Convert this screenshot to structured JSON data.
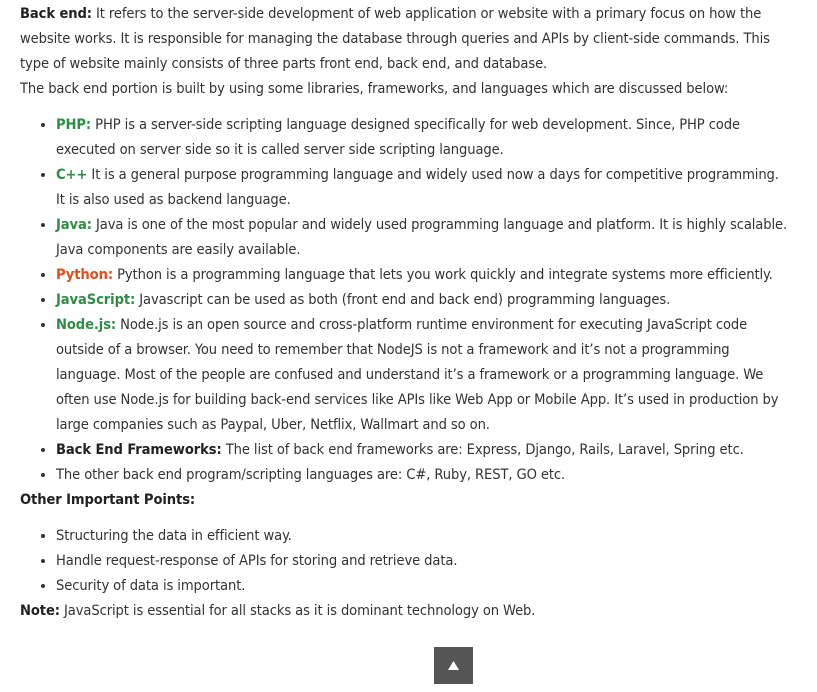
{
  "intro": {
    "label": "Back end:",
    "text": "It refers to the server-side development of web application or website with a primary focus on how the website works. It is responsible for managing the database through queries and APIs by client-side commands. This type of website mainly consists of three parts front end, back end, and database."
  },
  "lead": "The back end portion is built by using some libraries, frameworks, and languages which are discussed below:",
  "languages": [
    {
      "term": "PHP:",
      "color": "#2f8d46",
      "text": "PHP is a server-side scripting language designed specifically for web development. Since, PHP code executed on server side so it is called server side scripting language."
    },
    {
      "term": "C++",
      "color": "#2f8d46",
      "text": "It is a general purpose programming language and widely used now a days for competitive programming. It is also used as backend language."
    },
    {
      "term": "Java:",
      "color": "#2f8d46",
      "text": "Java is one of the most popular and widely used programming language and platform. It is highly scalable. Java components are easily available."
    },
    {
      "term": "Python:",
      "color": "#e0501c",
      "text": "Python is a programming language that lets you work quickly and integrate systems more efficiently."
    },
    {
      "term": "JavaScript:",
      "color": "#2f8d46",
      "text": "Javascript can be used as both (front end and back end) programming languages."
    },
    {
      "term": "Node.js:",
      "color": "#2f8d46",
      "text": "Node.js is an open source and cross-platform runtime environment for executing JavaScript code outside of a browser. You need to remember that NodeJS is not a framework and it’s not a programming language. Most of the people are confused and understand it’s a framework or a programming language. We often use Node.js for building back-end services like APIs like Web App or Mobile App. It’s used in production by large companies such as Paypal, Uber, Netflix, Wallmart and so on."
    },
    {
      "term": "Back End Frameworks:",
      "color": "#222222",
      "text": "The list of back end frameworks are: Express, Django, Rails, Laravel, Spring etc."
    },
    {
      "text": "The other back end program/scripting languages are: C#, Ruby, REST, GO etc."
    }
  ],
  "points": {
    "heading": "Other Important Points:",
    "items": [
      "Structuring the data in efficient way.",
      "Handle request-response of APIs for storing and retrieve data.",
      "Security of data is important."
    ]
  },
  "note": {
    "label": "Note:",
    "text": "JavaScript is essential for all stacks as it is dominant technology on Web."
  }
}
